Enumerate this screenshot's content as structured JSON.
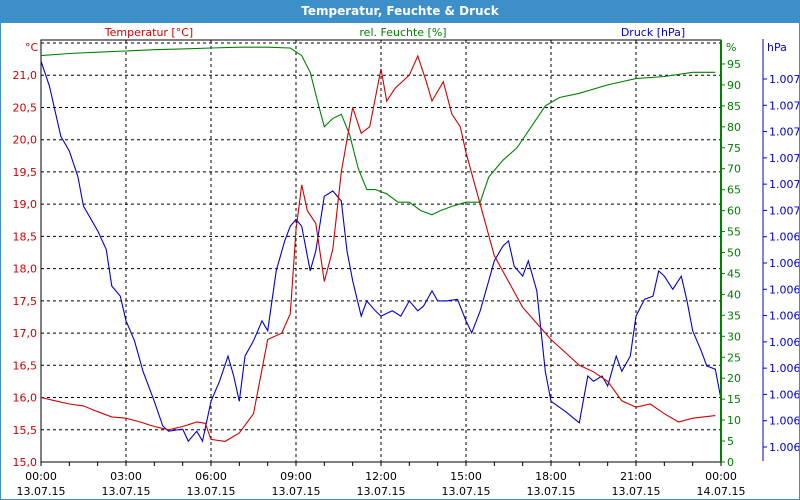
{
  "window": {
    "title": "Temperatur, Feuchte & Druck"
  },
  "chart_data": {
    "type": "line",
    "title": "Temperatur, Feuchte & Druck",
    "legend": {
      "temperature": "Temperatur [°C]",
      "humidity": "rel. Feuchte [%]",
      "pressure": "Druck [hPa]"
    },
    "axes": {
      "temperature": {
        "unit": "°C",
        "ylim": [
          15.0,
          21.5
        ],
        "ticks": [
          "15,0",
          "15,5",
          "16,0",
          "16,5",
          "17,0",
          "17,5",
          "18,0",
          "18,5",
          "19,0",
          "19,5",
          "20,0",
          "20,5",
          "21,0"
        ],
        "color": "#d00000"
      },
      "humidity": {
        "unit": "%",
        "ylim": [
          0,
          100
        ],
        "ticks": [
          "0",
          "5",
          "10",
          "15",
          "20",
          "25",
          "30",
          "35",
          "40",
          "45",
          "50",
          "55",
          "60",
          "65",
          "70",
          "75",
          "80",
          "85",
          "90",
          "95"
        ],
        "color": "#008000"
      },
      "pressure": {
        "unit": "hPa",
        "ylim": [
          1006.05,
          1006.75
        ],
        "ticks": [
          "1.006",
          "1.006",
          "1.006",
          "1.006",
          "1.006",
          "1.006",
          "1.006",
          "1.006",
          "1.006",
          "1.007",
          "1.007",
          "1.007",
          "1.007",
          "1.007",
          "1.007"
        ],
        "color": "#0000d0"
      }
    },
    "x_ticks": [
      {
        "time": "00:00",
        "date": "13.07.15"
      },
      {
        "time": "03:00",
        "date": "13.07.15"
      },
      {
        "time": "06:00",
        "date": "13.07.15"
      },
      {
        "time": "09:00",
        "date": "13.07.15"
      },
      {
        "time": "12:00",
        "date": "13.07.15"
      },
      {
        "time": "15:00",
        "date": "13.07.15"
      },
      {
        "time": "18:00",
        "date": "13.07.15"
      },
      {
        "time": "21:00",
        "date": "13.07.15"
      },
      {
        "time": "00:00",
        "date": "14.07.15"
      }
    ],
    "xlim_hours": [
      0,
      24
    ],
    "grid": true,
    "series": [
      {
        "name": "Temperatur",
        "axis": "temperature",
        "color": "#d00000",
        "points": [
          [
            0,
            16.0
          ],
          [
            0.5,
            15.95
          ],
          [
            1,
            15.9
          ],
          [
            1.5,
            15.87
          ],
          [
            2,
            15.78
          ],
          [
            2.5,
            15.7
          ],
          [
            3,
            15.68
          ],
          [
            3.5,
            15.62
          ],
          [
            4,
            15.55
          ],
          [
            4.5,
            15.5
          ],
          [
            5,
            15.55
          ],
          [
            5.5,
            15.62
          ],
          [
            5.8,
            15.6
          ],
          [
            6,
            15.35
          ],
          [
            6.5,
            15.32
          ],
          [
            7,
            15.45
          ],
          [
            7.5,
            15.75
          ],
          [
            8,
            16.9
          ],
          [
            8.5,
            17.0
          ],
          [
            8.8,
            17.3
          ],
          [
            9,
            18.6
          ],
          [
            9.2,
            19.3
          ],
          [
            9.4,
            18.9
          ],
          [
            9.7,
            18.7
          ],
          [
            10,
            17.8
          ],
          [
            10.3,
            18.3
          ],
          [
            10.6,
            19.5
          ],
          [
            11,
            20.5
          ],
          [
            11.3,
            20.1
          ],
          [
            11.6,
            20.2
          ],
          [
            12,
            21.1
          ],
          [
            12.2,
            20.6
          ],
          [
            12.5,
            20.8
          ],
          [
            13,
            21.0
          ],
          [
            13.3,
            21.3
          ],
          [
            13.6,
            20.9
          ],
          [
            13.8,
            20.6
          ],
          [
            14.2,
            20.9
          ],
          [
            14.5,
            20.4
          ],
          [
            14.8,
            20.2
          ],
          [
            15,
            19.8
          ],
          [
            15.5,
            19.0
          ],
          [
            16,
            18.2
          ],
          [
            16.5,
            17.8
          ],
          [
            17,
            17.4
          ],
          [
            17.5,
            17.15
          ],
          [
            18,
            16.9
          ],
          [
            18.5,
            16.7
          ],
          [
            19,
            16.5
          ],
          [
            19.5,
            16.4
          ],
          [
            20,
            16.25
          ],
          [
            20.5,
            15.95
          ],
          [
            21,
            15.85
          ],
          [
            21.5,
            15.9
          ],
          [
            22,
            15.75
          ],
          [
            22.5,
            15.62
          ],
          [
            23,
            15.68
          ],
          [
            23.8,
            15.72
          ]
        ]
      },
      {
        "name": "rel. Feuchte",
        "axis": "humidity",
        "color": "#008000",
        "points": [
          [
            0,
            97
          ],
          [
            1,
            97.5
          ],
          [
            2,
            97.8
          ],
          [
            3,
            98.1
          ],
          [
            4,
            98.4
          ],
          [
            5,
            98.6
          ],
          [
            6,
            98.8
          ],
          [
            7,
            99
          ],
          [
            8,
            99
          ],
          [
            8.8,
            98.8
          ],
          [
            9.2,
            97
          ],
          [
            9.5,
            93
          ],
          [
            9.8,
            85
          ],
          [
            10,
            80
          ],
          [
            10.3,
            82
          ],
          [
            10.6,
            83
          ],
          [
            10.9,
            78
          ],
          [
            11.2,
            70
          ],
          [
            11.5,
            65
          ],
          [
            11.8,
            65
          ],
          [
            12.2,
            64
          ],
          [
            12.6,
            62
          ],
          [
            13,
            62
          ],
          [
            13.4,
            60
          ],
          [
            13.8,
            59
          ],
          [
            14.1,
            60
          ],
          [
            14.5,
            61
          ],
          [
            15,
            62
          ],
          [
            15.5,
            62
          ],
          [
            15.8,
            68
          ],
          [
            16.3,
            72
          ],
          [
            16.8,
            75
          ],
          [
            17.3,
            80
          ],
          [
            17.8,
            85
          ],
          [
            18.3,
            87
          ],
          [
            19,
            88
          ],
          [
            20,
            90
          ],
          [
            21,
            91.5
          ],
          [
            22,
            92
          ],
          [
            23,
            93
          ],
          [
            23.8,
            93
          ]
        ]
      },
      {
        "name": "Druck",
        "axis": "pressure",
        "color": "#0000d0",
        "points": [
          [
            0,
            1006.784
          ],
          [
            0.3,
            1006.736
          ],
          [
            0.7,
            1006.641
          ],
          [
            1,
            1006.613
          ],
          [
            1.3,
            1006.565
          ],
          [
            1.5,
            1006.508
          ],
          [
            2,
            1006.461
          ],
          [
            2.3,
            1006.426
          ],
          [
            2.5,
            1006.356
          ],
          [
            2.8,
            1006.337
          ],
          [
            3,
            1006.29
          ],
          [
            3.3,
            1006.252
          ],
          [
            3.6,
            1006.194
          ],
          [
            4,
            1006.137
          ],
          [
            4.3,
            1006.09
          ],
          [
            4.5,
            1006.08
          ],
          [
            5,
            1006.084
          ],
          [
            5.2,
            1006.061
          ],
          [
            5.5,
            1006.08
          ],
          [
            5.7,
            1006.061
          ],
          [
            6,
            1006.137
          ],
          [
            6.3,
            1006.175
          ],
          [
            6.6,
            1006.223
          ],
          [
            6.8,
            1006.185
          ],
          [
            7,
            1006.137
          ],
          [
            7.2,
            1006.223
          ],
          [
            7.5,
            1006.252
          ],
          [
            7.8,
            1006.29
          ],
          [
            8,
            1006.271
          ],
          [
            8.3,
            1006.385
          ],
          [
            8.6,
            1006.442
          ],
          [
            8.8,
            1006.47
          ],
          [
            9,
            1006.483
          ],
          [
            9.2,
            1006.47
          ],
          [
            9.5,
            1006.385
          ],
          [
            9.7,
            1006.423
          ],
          [
            10,
            1006.527
          ],
          [
            10.3,
            1006.537
          ],
          [
            10.6,
            1006.518
          ],
          [
            10.8,
            1006.423
          ],
          [
            11,
            1006.366
          ],
          [
            11.3,
            1006.299
          ],
          [
            11.5,
            1006.328
          ],
          [
            11.8,
            1006.309
          ],
          [
            12,
            1006.299
          ],
          [
            12.4,
            1006.309
          ],
          [
            12.7,
            1006.299
          ],
          [
            13,
            1006.328
          ],
          [
            13.3,
            1006.309
          ],
          [
            13.5,
            1006.318
          ],
          [
            13.8,
            1006.347
          ],
          [
            14,
            1006.328
          ],
          [
            14.3,
            1006.328
          ],
          [
            14.7,
            1006.331
          ],
          [
            15,
            1006.29
          ],
          [
            15.2,
            1006.267
          ],
          [
            15.5,
            1006.309
          ],
          [
            15.8,
            1006.366
          ],
          [
            16,
            1006.404
          ],
          [
            16.3,
            1006.432
          ],
          [
            16.5,
            1006.442
          ],
          [
            16.7,
            1006.394
          ],
          [
            17,
            1006.375
          ],
          [
            17.2,
            1006.404
          ],
          [
            17.5,
            1006.347
          ],
          [
            17.8,
            1006.194
          ],
          [
            18,
            1006.137
          ],
          [
            18.5,
            1006.118
          ],
          [
            19,
            1006.096
          ],
          [
            19.3,
            1006.185
          ],
          [
            19.5,
            1006.175
          ],
          [
            19.8,
            1006.185
          ],
          [
            20,
            1006.166
          ],
          [
            20.3,
            1006.223
          ],
          [
            20.5,
            1006.194
          ],
          [
            20.8,
            1006.223
          ],
          [
            21,
            1006.299
          ],
          [
            21.3,
            1006.331
          ],
          [
            21.6,
            1006.337
          ],
          [
            21.8,
            1006.385
          ],
          [
            22,
            1006.375
          ],
          [
            22.3,
            1006.35
          ],
          [
            22.6,
            1006.375
          ],
          [
            22.8,
            1006.328
          ],
          [
            23,
            1006.271
          ],
          [
            23.3,
            1006.233
          ],
          [
            23.5,
            1006.204
          ],
          [
            23.8,
            1006.198
          ],
          [
            24,
            1006.141
          ]
        ]
      }
    ]
  }
}
